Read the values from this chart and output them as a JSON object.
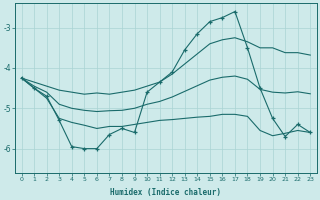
{
  "xlabel": "Humidex (Indice chaleur)",
  "bg_color": "#ceeaea",
  "line_color": "#1a6b6b",
  "grid_color": "#aad4d4",
  "x": [
    0,
    1,
    2,
    3,
    4,
    5,
    6,
    7,
    8,
    9,
    10,
    11,
    12,
    13,
    14,
    15,
    16,
    17,
    18,
    19,
    20,
    21,
    22,
    23
  ],
  "y_main": [
    -4.25,
    -4.5,
    -4.7,
    -5.3,
    -5.95,
    -6.0,
    -6.0,
    -5.65,
    -5.5,
    -5.6,
    -4.6,
    -4.35,
    -4.1,
    -3.55,
    -3.15,
    -2.85,
    -2.75,
    -2.6,
    -3.5,
    -4.5,
    -5.25,
    -5.7,
    -5.4,
    -5.6
  ],
  "y_upper": [
    -4.25,
    -4.35,
    -4.45,
    -4.55,
    -4.6,
    -4.65,
    -4.62,
    -4.65,
    -4.6,
    -4.55,
    -4.45,
    -4.35,
    -4.15,
    -3.9,
    -3.65,
    -3.4,
    -3.3,
    -3.25,
    -3.35,
    -3.5,
    -3.5,
    -3.62,
    -3.62,
    -3.68
  ],
  "y_lower": [
    -4.25,
    -4.5,
    -4.75,
    -5.25,
    -5.35,
    -5.42,
    -5.5,
    -5.45,
    -5.45,
    -5.4,
    -5.35,
    -5.3,
    -5.28,
    -5.25,
    -5.22,
    -5.2,
    -5.15,
    -5.15,
    -5.2,
    -5.55,
    -5.68,
    -5.62,
    -5.55,
    -5.6
  ],
  "y_mid": [
    -4.25,
    -4.45,
    -4.6,
    -4.9,
    -5.0,
    -5.05,
    -5.08,
    -5.06,
    -5.05,
    -5.0,
    -4.9,
    -4.83,
    -4.72,
    -4.58,
    -4.44,
    -4.3,
    -4.23,
    -4.2,
    -4.28,
    -4.53,
    -4.6,
    -4.62,
    -4.59,
    -4.64
  ],
  "ylim": [
    -6.6,
    -2.4
  ],
  "yticks": [
    -6,
    -5,
    -4,
    -3
  ],
  "xlim": [
    -0.5,
    23.5
  ]
}
